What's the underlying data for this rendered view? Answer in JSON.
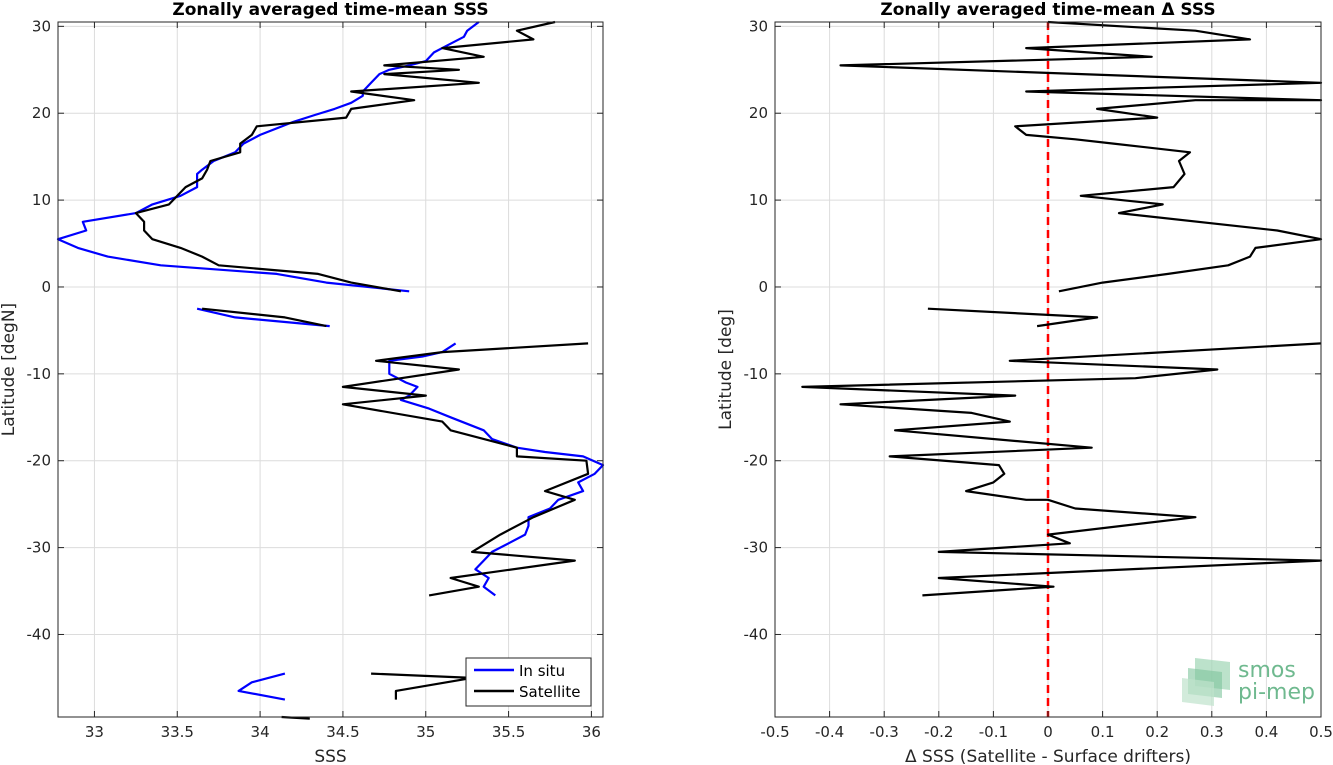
{
  "chart_data": [
    {
      "type": "line",
      "title": "Zonally averaged time-mean SSS",
      "xlabel": "SSS",
      "ylabel": "Latitude [degN]",
      "xlim": [
        32.78,
        36.07
      ],
      "ylim": [
        -49.5,
        30.5
      ],
      "xticks": [
        33,
        33.5,
        34,
        34.5,
        35,
        35.5,
        36
      ],
      "yticks": [
        30,
        20,
        10,
        0,
        -10,
        -20,
        -30,
        -40
      ],
      "grid": true,
      "legend_position": "bottom-right",
      "series": [
        {
          "name": "In situ",
          "color": "#0000ff",
          "segments": [
            [
              [
                35.32,
                30.5
              ],
              [
                35.25,
                29.5
              ],
              [
                35.23,
                28.8
              ],
              [
                35.15,
                28.0
              ],
              [
                35.05,
                27.0
              ],
              [
                35.0,
                26.0
              ],
              [
                34.9,
                25.5
              ],
              [
                34.78,
                25.0
              ],
              [
                34.72,
                24.5
              ],
              [
                34.67,
                23.5
              ],
              [
                34.62,
                22.5
              ],
              [
                34.62,
                22.0
              ],
              [
                34.55,
                21.2
              ],
              [
                34.45,
                20.5
              ],
              [
                34.33,
                19.8
              ],
              [
                34.2,
                19.0
              ],
              [
                34.0,
                17.5
              ],
              [
                33.9,
                16.5
              ],
              [
                33.85,
                15.5
              ],
              [
                33.72,
                14.5
              ],
              [
                33.65,
                13.5
              ],
              [
                33.62,
                13.0
              ],
              [
                33.62,
                11.5
              ],
              [
                33.52,
                10.5
              ],
              [
                33.35,
                9.5
              ],
              [
                33.25,
                8.5
              ],
              [
                32.93,
                7.5
              ],
              [
                32.95,
                6.5
              ],
              [
                32.78,
                5.5
              ],
              [
                32.9,
                4.5
              ],
              [
                33.08,
                3.5
              ],
              [
                33.4,
                2.5
              ],
              [
                34.1,
                1.5
              ],
              [
                34.4,
                0.5
              ],
              [
                34.9,
                -0.5
              ]
            ],
            [
              [
                33.62,
                -2.5
              ],
              [
                33.85,
                -3.5
              ],
              [
                34.42,
                -4.5
              ]
            ],
            [
              [
                35.18,
                -6.5
              ],
              [
                35.1,
                -7.5
              ],
              [
                34.98,
                -8.0
              ],
              [
                34.78,
                -8.5
              ],
              [
                34.78,
                -10.0
              ],
              [
                34.88,
                -11.0
              ],
              [
                34.95,
                -11.5
              ],
              [
                34.9,
                -12.5
              ],
              [
                34.85,
                -13.0
              ],
              [
                35.02,
                -14.0
              ],
              [
                35.15,
                -15.0
              ],
              [
                35.35,
                -16.5
              ],
              [
                35.4,
                -17.5
              ],
              [
                35.55,
                -18.5
              ],
              [
                35.72,
                -19.0
              ],
              [
                35.95,
                -19.5
              ],
              [
                36.07,
                -20.5
              ],
              [
                36.02,
                -21.5
              ],
              [
                35.92,
                -22.5
              ],
              [
                35.95,
                -23.5
              ],
              [
                35.8,
                -24.5
              ],
              [
                35.75,
                -25.5
              ],
              [
                35.62,
                -26.5
              ],
              [
                35.62,
                -27.5
              ],
              [
                35.6,
                -28.5
              ],
              [
                35.5,
                -29.5
              ],
              [
                35.4,
                -30.5
              ],
              [
                35.35,
                -31.5
              ],
              [
                35.3,
                -32.5
              ],
              [
                35.38,
                -33.5
              ],
              [
                35.35,
                -34.5
              ],
              [
                35.42,
                -35.5
              ]
            ],
            [
              [
                34.15,
                -44.5
              ],
              [
                33.95,
                -45.5
              ],
              [
                33.87,
                -46.5
              ],
              [
                34.15,
                -47.5
              ]
            ]
          ]
        },
        {
          "name": "Satellite",
          "color": "#000000",
          "segments": [
            [
              [
                35.78,
                30.5
              ],
              [
                35.55,
                29.5
              ],
              [
                35.65,
                28.5
              ],
              [
                35.1,
                27.5
              ],
              [
                35.35,
                26.5
              ],
              [
                34.75,
                25.5
              ],
              [
                35.2,
                25.0
              ],
              [
                34.75,
                24.5
              ],
              [
                35.32,
                23.5
              ],
              [
                34.55,
                22.5
              ],
              [
                34.93,
                21.5
              ],
              [
                34.55,
                20.5
              ],
              [
                34.52,
                19.5
              ],
              [
                33.98,
                18.5
              ],
              [
                33.95,
                17.5
              ],
              [
                33.88,
                16.5
              ],
              [
                33.88,
                15.5
              ],
              [
                33.7,
                14.5
              ],
              [
                33.68,
                13.5
              ],
              [
                33.65,
                12.5
              ],
              [
                33.55,
                11.5
              ],
              [
                33.5,
                10.5
              ],
              [
                33.45,
                9.5
              ],
              [
                33.25,
                8.5
              ],
              [
                33.3,
                7.5
              ],
              [
                33.3,
                6.5
              ],
              [
                33.35,
                5.5
              ],
              [
                33.52,
                4.5
              ],
              [
                33.65,
                3.5
              ],
              [
                33.75,
                2.5
              ],
              [
                34.35,
                1.5
              ],
              [
                34.55,
                0.5
              ],
              [
                34.85,
                -0.5
              ]
            ],
            [
              [
                33.65,
                -2.5
              ],
              [
                34.15,
                -3.5
              ],
              [
                34.4,
                -4.5
              ]
            ],
            [
              [
                35.98,
                -6.5
              ],
              [
                35.1,
                -7.5
              ],
              [
                34.7,
                -8.5
              ],
              [
                35.2,
                -9.5
              ],
              [
                34.5,
                -11.5
              ],
              [
                35.0,
                -12.5
              ],
              [
                34.5,
                -13.5
              ],
              [
                35.1,
                -15.5
              ],
              [
                35.15,
                -16.5
              ],
              [
                35.55,
                -18.5
              ],
              [
                35.55,
                -19.5
              ],
              [
                35.97,
                -20.0
              ],
              [
                35.98,
                -21.5
              ],
              [
                35.72,
                -23.5
              ],
              [
                35.9,
                -24.5
              ],
              [
                35.65,
                -26.5
              ],
              [
                35.45,
                -28.5
              ],
              [
                35.28,
                -30.5
              ],
              [
                35.9,
                -31.5
              ],
              [
                35.15,
                -33.5
              ],
              [
                35.32,
                -34.5
              ],
              [
                35.02,
                -35.5
              ]
            ],
            [
              [
                34.67,
                -44.5
              ],
              [
                35.28,
                -45.0
              ],
              [
                34.82,
                -46.5
              ],
              [
                34.82,
                -47.5
              ]
            ],
            [
              [
                34.13,
                -49.5
              ],
              [
                34.3,
                -49.7
              ]
            ]
          ]
        }
      ]
    },
    {
      "type": "line",
      "title": "Zonally averaged time-mean Δ SSS",
      "xlabel": "Δ SSS (Satellite - Surface drifters)",
      "ylabel": "Latitude [deg]",
      "xlim": [
        -0.5,
        0.5
      ],
      "ylim": [
        -49.5,
        30.5
      ],
      "xticks": [
        -0.5,
        -0.4,
        -0.3,
        -0.2,
        -0.1,
        0,
        0.1,
        0.2,
        0.3,
        0.4,
        0.5
      ],
      "yticks": [
        30,
        20,
        10,
        0,
        -10,
        -20,
        -30,
        -40
      ],
      "grid": true,
      "reference_line": {
        "x": 0,
        "color": "#ff0000",
        "style": "dashed"
      },
      "series": [
        {
          "color": "#000000",
          "segments": [
            [
              [
                0.0,
                30.5
              ],
              [
                0.27,
                29.5
              ],
              [
                0.37,
                28.5
              ],
              [
                -0.04,
                27.5
              ],
              [
                0.19,
                26.5
              ],
              [
                -0.38,
                25.5
              ],
              [
                0.5,
                23.5
              ],
              [
                -0.04,
                22.5
              ],
              [
                0.5,
                21.5
              ],
              [
                0.27,
                21.5
              ],
              [
                0.09,
                20.5
              ],
              [
                0.2,
                19.5
              ],
              [
                -0.06,
                18.5
              ],
              [
                -0.04,
                17.5
              ],
              [
                0.05,
                17.0
              ],
              [
                0.12,
                16.5
              ],
              [
                0.26,
                15.5
              ],
              [
                0.24,
                14.5
              ],
              [
                0.25,
                13.0
              ],
              [
                0.23,
                11.5
              ],
              [
                0.06,
                10.5
              ],
              [
                0.21,
                9.5
              ],
              [
                0.13,
                8.5
              ],
              [
                0.42,
                6.5
              ],
              [
                0.5,
                5.5
              ],
              [
                0.38,
                4.5
              ],
              [
                0.37,
                3.5
              ],
              [
                0.33,
                2.5
              ],
              [
                0.22,
                1.5
              ],
              [
                0.1,
                0.5
              ],
              [
                0.02,
                -0.5
              ]
            ],
            [
              [
                -0.22,
                -2.5
              ],
              [
                0.09,
                -3.5
              ],
              [
                -0.02,
                -4.5
              ]
            ],
            [
              [
                0.5,
                -6.5
              ],
              [
                -0.07,
                -8.5
              ],
              [
                0.31,
                -9.5
              ],
              [
                0.16,
                -10.5
              ],
              [
                -0.45,
                -11.5
              ],
              [
                -0.06,
                -12.5
              ],
              [
                -0.38,
                -13.5
              ],
              [
                -0.14,
                -14.5
              ],
              [
                -0.07,
                -15.5
              ],
              [
                -0.28,
                -16.5
              ],
              [
                0.08,
                -18.5
              ],
              [
                -0.29,
                -19.5
              ],
              [
                -0.09,
                -20.5
              ],
              [
                -0.08,
                -21.5
              ],
              [
                -0.1,
                -22.5
              ],
              [
                -0.15,
                -23.5
              ],
              [
                -0.04,
                -24.5
              ],
              [
                0.0,
                -24.5
              ],
              [
                0.05,
                -25.5
              ],
              [
                0.27,
                -26.5
              ],
              [
                0.0,
                -28.5
              ],
              [
                0.04,
                -29.5
              ],
              [
                -0.2,
                -30.5
              ],
              [
                0.5,
                -31.5
              ],
              [
                -0.2,
                -33.5
              ],
              [
                0.01,
                -34.5
              ],
              [
                -0.23,
                -35.5
              ]
            ]
          ]
        }
      ]
    }
  ],
  "legend": {
    "insitu_label": "In situ",
    "satellite_label": "Satellite"
  },
  "logo": {
    "line1": "smos",
    "line2": "pi-mep"
  }
}
